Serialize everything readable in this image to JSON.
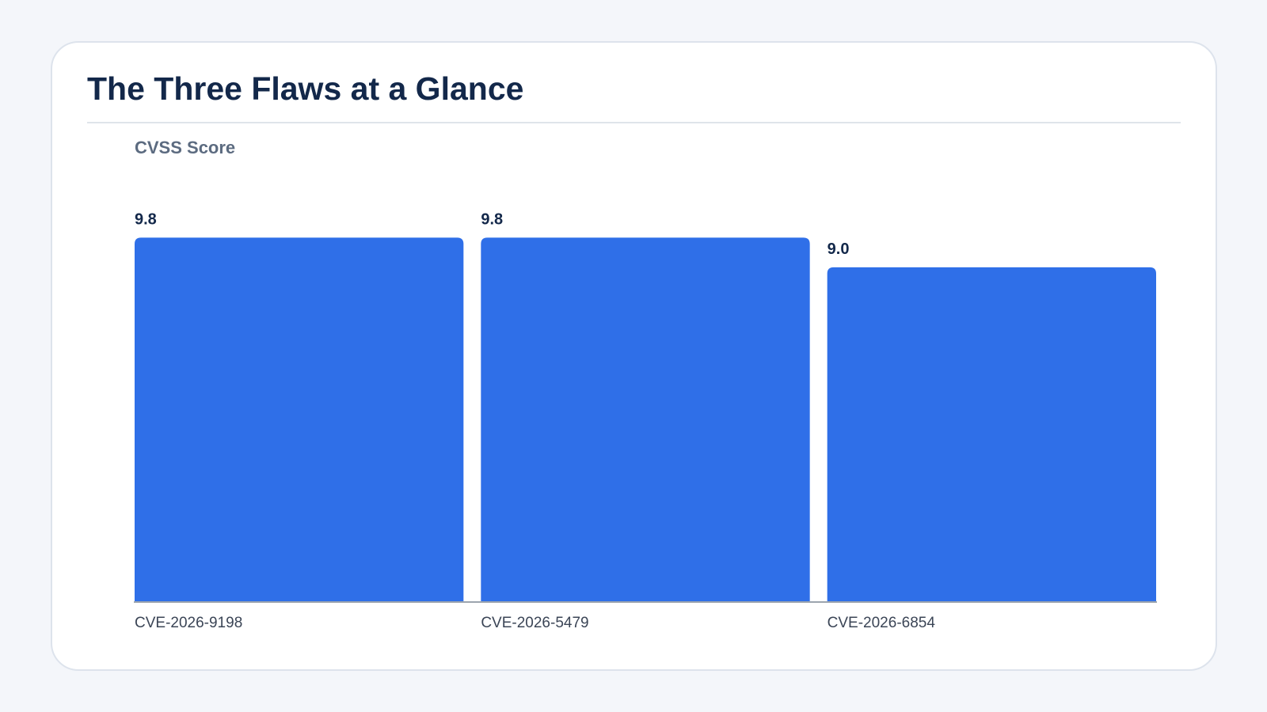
{
  "chart_data": {
    "type": "bar",
    "title": "The Three Flaws at a Glance",
    "y_label": "CVSS Score",
    "categories": [
      "CVE-2026-9198",
      "CVE-2026-5479",
      "CVE-2026-6854"
    ],
    "values": [
      9.8,
      9.8,
      9.0
    ],
    "value_labels": [
      "9.8",
      "9.8",
      "9.0"
    ],
    "color": "#2f6fe8",
    "ylim": [
      0,
      10
    ]
  }
}
